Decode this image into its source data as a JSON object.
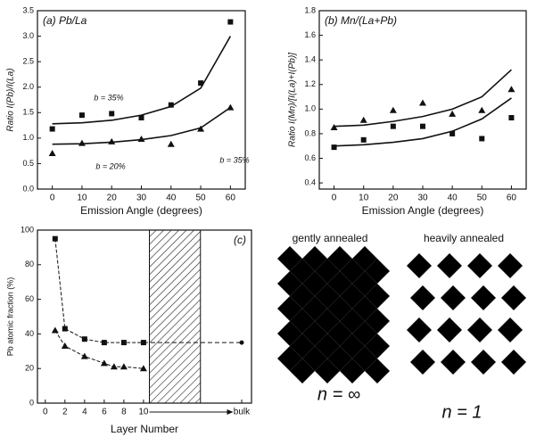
{
  "chart_data": [
    {
      "type": "scatter",
      "title": "(a) Pb/La",
      "x_label": "Emission Angle (degrees)",
      "y_label": "Ratio I(Pb)/I(La)",
      "x": [
        0,
        10,
        20,
        30,
        40,
        50,
        60
      ],
      "series": [
        {
          "style": "square",
          "color": "#111111",
          "values": [
            1.18,
            1.45,
            1.48,
            1.4,
            1.65,
            2.08,
            3.28
          ]
        },
        {
          "style": "triangle",
          "color": "#111111",
          "values": [
            0.7,
            0.9,
            0.93,
            0.98,
            0.88,
            1.18,
            1.6
          ]
        },
        {
          "style": "line",
          "color": "#111111",
          "values": [
            1.28,
            1.3,
            1.35,
            1.45,
            1.62,
            1.98,
            3.0
          ]
        },
        {
          "style": "line",
          "color": "#111111",
          "values": [
            0.88,
            0.89,
            0.92,
            0.97,
            1.05,
            1.2,
            1.6
          ]
        }
      ],
      "xlim": [
        -5,
        65
      ],
      "xticks": [
        0,
        10,
        20,
        30,
        40,
        50,
        60
      ],
      "ylim": [
        0,
        3.5
      ],
      "yticks": [
        {
          "value": 0,
          "label": "0.0"
        },
        0.5,
        {
          "value": 1,
          "label": "1.0"
        },
        1.5,
        {
          "value": 2,
          "label": "2.0"
        },
        2.5,
        {
          "value": 3,
          "label": "3.0"
        },
        3.5
      ]
    },
    {
      "type": "scatter",
      "title": "(b) Mn/(La+Pb)",
      "x_label": "Emission Angle (degrees)",
      "y_label": "Ratio I(Mn)/[I(La)+I(Pb)]",
      "x": [
        0,
        10,
        20,
        30,
        40,
        50,
        60
      ],
      "series": [
        {
          "style": "triangle",
          "color": "#111111",
          "values": [
            0.85,
            0.91,
            0.99,
            1.05,
            0.96,
            0.99,
            1.16
          ]
        },
        {
          "style": "square",
          "color": "#111111",
          "values": [
            0.69,
            0.75,
            0.86,
            0.86,
            0.8,
            0.76,
            0.93
          ]
        },
        {
          "style": "line",
          "color": "#111111",
          "values": [
            0.86,
            0.87,
            0.9,
            0.94,
            1.0,
            1.1,
            1.32
          ]
        },
        {
          "style": "line",
          "color": "#111111",
          "values": [
            0.7,
            0.71,
            0.73,
            0.76,
            0.82,
            0.92,
            1.09
          ]
        }
      ],
      "xlim": [
        -5,
        65
      ],
      "xticks": [
        0,
        10,
        20,
        30,
        40,
        50,
        60
      ],
      "ylim": [
        0.35,
        1.8
      ],
      "yticks": [
        0.4,
        0.6,
        0.8,
        {
          "value": 1,
          "label": "1.0"
        },
        1.2,
        1.4,
        1.6,
        1.8
      ]
    },
    {
      "type": "scatter",
      "title": "(c)",
      "x_label": "Layer Number",
      "y_label": "Pb atomic fraction (%)",
      "annotations": [
        "b = 35%",
        "b = 20%",
        "b = 35%"
      ],
      "series": [
        {
          "style": "square-line",
          "color": "#111111",
          "x": [
            1,
            2,
            4,
            6,
            8,
            10
          ],
          "values": [
            95,
            43,
            37,
            35,
            35,
            35
          ]
        },
        {
          "style": "triangle-line",
          "color": "#111111",
          "x": [
            1,
            2,
            4,
            6,
            7,
            8,
            10
          ],
          "values": [
            42,
            33,
            27,
            23,
            21,
            21,
            20
          ]
        },
        {
          "style": "dash",
          "color": "#111111",
          "x": [
            10,
            20
          ],
          "values": [
            35,
            35
          ]
        }
      ],
      "xlim": [
        -0.8,
        21
      ],
      "xticks": [
        0,
        2,
        4,
        6,
        8,
        10,
        {
          "value": 20,
          "label": "bulk"
        }
      ],
      "ylim": [
        0,
        100
      ],
      "yticks": [
        0,
        20,
        40,
        60,
        80,
        100
      ]
    }
  ],
  "diagram": {
    "left_title": "gently annealed",
    "right_title": "heavily annealed",
    "left_label": "n = ∞",
    "right_label": "n = 1"
  }
}
